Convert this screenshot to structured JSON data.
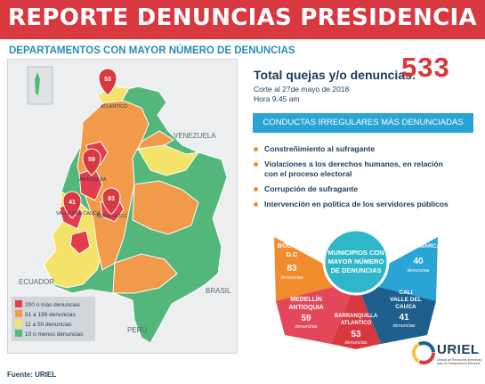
{
  "header": {
    "title": "REPORTE DENUNCIAS PRESIDENCIA"
  },
  "subtitle": "DEPARTAMENTOS CON MAYOR NÚMERO DE DENUNCIAS",
  "summary": {
    "total_label": "Total quejas y/o denuncias:",
    "total_value": "533",
    "cut_date": "Corte al 27de mayo de 2018",
    "cut_time": "Hora 9:45 am"
  },
  "map": {
    "country_labels": {
      "venezuela": "VENEZUELA",
      "ecuador": "ECUADOR",
      "brasil": "BRASIL",
      "peru": "PERÚ"
    },
    "markers": [
      {
        "name": "ATLANTICO",
        "value": "53"
      },
      {
        "name": "ANTIOQUIA",
        "value": "59"
      },
      {
        "name": "VALLE DEL CAUCA",
        "value": "41"
      },
      {
        "name": "BOGOTÁ D.C",
        "value": "83"
      }
    ],
    "legend": [
      {
        "label": "200 o más denuncias",
        "color": "#e23d4c"
      },
      {
        "label": "51 a 199 denuncias",
        "color": "#f09a4a"
      },
      {
        "label": "11 a 50 denuncias",
        "color": "#f5e26b"
      },
      {
        "label": "10 o menos denuncias",
        "color": "#53b67a"
      }
    ]
  },
  "conducts": {
    "title": "CONDUCTAS IRREGULARES MÁS DENUNCIADAS",
    "items": [
      "Constreñimiento al sufragante",
      "Violaciones a los derechos humanos, en relación",
      "con el proceso electoral",
      "Corrupción de sufragante",
      "Intervención en política de los servidores públicos"
    ]
  },
  "wheel": {
    "center": [
      "MUNICIPIOS CON",
      "MAYOR NÚMERO",
      "DE DENUNCIAS"
    ],
    "unit": "denuncias",
    "segments": [
      {
        "name": [
          "BOGOTÁ",
          "D.C"
        ],
        "value": "83",
        "color": "#f08c2c"
      },
      {
        "name": [
          "CUNDINAMARCA"
        ],
        "value": "40",
        "color": "#29a4d4"
      },
      {
        "name": [
          "CALI",
          "VALLE DEL",
          "CAUCA"
        ],
        "value": "41",
        "color": "#1f5f8e"
      },
      {
        "name": [
          "BARRANQUILLA",
          "ATLANTICO"
        ],
        "value": "53",
        "color": "#d8383f"
      },
      {
        "name": [
          "MEDELLÍN",
          "ANTIOQUIA"
        ],
        "value": "59",
        "color": "#e5475a"
      }
    ]
  },
  "source": "Fuente: URIEL",
  "logo": {
    "name": "URIEL",
    "tagline": "Unidad de Recepción Inmediata para la Transparencia Electoral"
  }
}
